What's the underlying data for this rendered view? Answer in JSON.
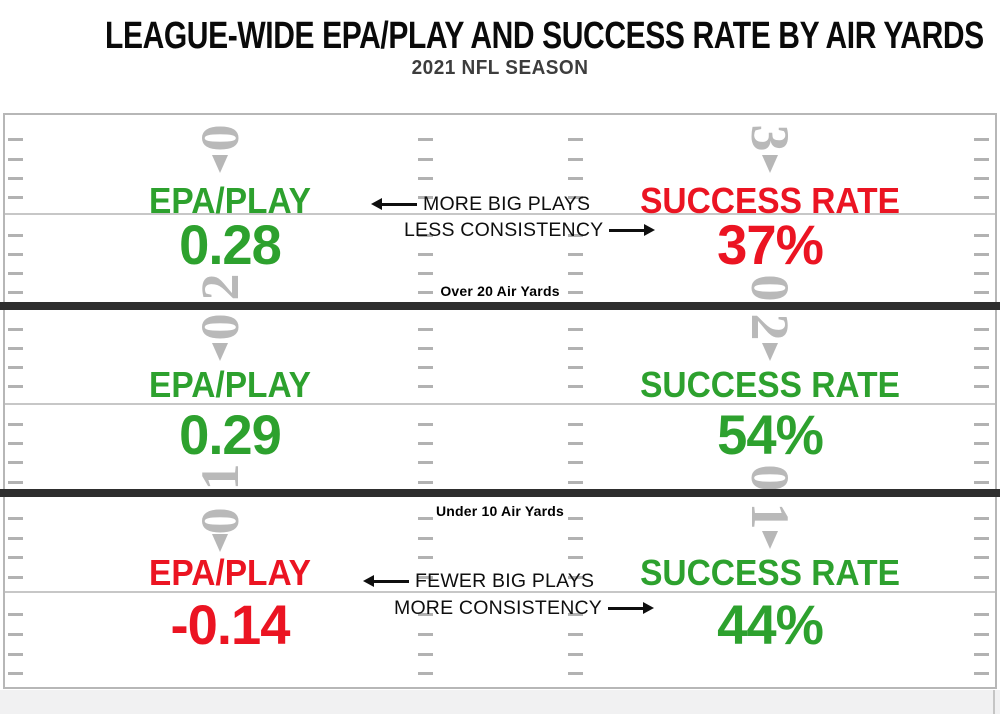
{
  "header": {
    "title": "LEAGUE-WIDE EPA/PLAY AND SUCCESS RATE BY AIR YARDS",
    "subtitle": "2021 NFL SEASON"
  },
  "colors": {
    "green": "#2DA12E",
    "red": "#EB1422",
    "field_gray": "#b7b7b7",
    "line_dark": "#2e2e2e"
  },
  "dividers": {
    "over20": "Over 20 Air Yards",
    "under10": "Under 10 Air Yards"
  },
  "annotations": {
    "top_line1": "MORE BIG PLAYS",
    "top_line2": "LESS CONSISTENCY",
    "bottom_line1": "FEWER BIG PLAYS",
    "bottom_line2": "MORE CONSISTENCY"
  },
  "sections": [
    {
      "name": "over-20-air-yards",
      "epa_label": "EPA/PLAY",
      "epa_value": "0.28",
      "epa_color": "green",
      "sr_label": "SUCCESS RATE",
      "sr_value": "37%",
      "sr_color": "red",
      "yards": {
        "left_top": "0",
        "right_top": "3",
        "left_bottom": "2",
        "right_bottom": "0"
      }
    },
    {
      "name": "10-to-20-air-yards",
      "epa_label": "EPA/PLAY",
      "epa_value": "0.29",
      "epa_color": "green",
      "sr_label": "SUCCESS RATE",
      "sr_value": "54%",
      "sr_color": "green",
      "yards": {
        "left_top": "0",
        "right_top": "2",
        "left_bottom": "1",
        "right_bottom": "0"
      }
    },
    {
      "name": "under-10-air-yards",
      "epa_label": "EPA/PLAY",
      "epa_value": "-0.14",
      "epa_color": "red",
      "sr_label": "SUCCESS RATE",
      "sr_value": "44%",
      "sr_color": "green",
      "yards": {
        "left_top": "0",
        "right_top": "1"
      }
    }
  ],
  "chart_data": {
    "type": "table",
    "title": "LEAGUE-WIDE EPA/PLAY AND SUCCESS RATE BY AIR YARDS",
    "subtitle": "2021 NFL SEASON",
    "categories": [
      "Over 20 Air Yards",
      null,
      "Under 10 Air Yards"
    ],
    "series": [
      {
        "name": "EPA/PLAY",
        "values": [
          0.28,
          0.29,
          -0.14
        ],
        "colors": [
          "green",
          "green",
          "red"
        ]
      },
      {
        "name": "SUCCESS RATE",
        "values": [
          "37%",
          "54%",
          "44%"
        ],
        "colors": [
          "red",
          "green",
          "green"
        ]
      }
    ],
    "annotations": [
      {
        "band": "over-20-air-yards",
        "lines": [
          "MORE BIG PLAYS",
          "LESS CONSISTENCY"
        ]
      },
      {
        "band": "under-10-air-yards",
        "lines": [
          "FEWER BIG PLAYS",
          "MORE CONSISTENCY"
        ]
      }
    ],
    "layout_hints": {
      "style": "football-field infographic, three horizontal bands",
      "grid": "yard lines and hash marks"
    }
  }
}
